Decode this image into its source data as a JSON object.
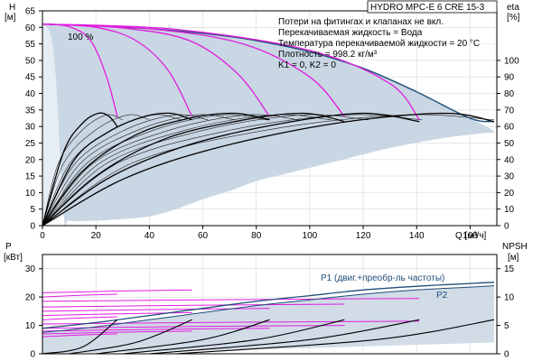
{
  "chart_data": {
    "type": "line",
    "title": "HYDRO MPC-E 6 CRE 15-3",
    "notes": [
      "Потери на фитингах и клапанах не вкл.",
      "Перекачиваемая жидкость = Вода",
      "Температура перекачиваемой жидкости = 20 °C",
      "Плотность = 998.2 кг/м³",
      "K1 = 0, K2 = 0"
    ],
    "percent_label": "100 %",
    "colors": {
      "envelope": "#c9d6e3",
      "envelope_light": "#e6edf4",
      "magenta": "#e21ce0",
      "black": "#000000",
      "navy": "#1f4e79",
      "thin": "#222222"
    },
    "x_axis": {
      "label": "Q [м³/ч]",
      "range": [
        0,
        170
      ],
      "ticks": [
        0,
        20,
        40,
        60,
        80,
        100,
        120,
        140,
        160
      ]
    },
    "top": {
      "y_left": {
        "label_line1": "H",
        "label_line2": "[м]",
        "range": [
          0,
          65
        ],
        "ticks": [
          0,
          5,
          10,
          15,
          20,
          25,
          30,
          35,
          40,
          45,
          50,
          55,
          60,
          65
        ]
      },
      "y_right": {
        "label_line1": "eta",
        "label_line2": "[%]",
        "range": [
          0,
          130
        ],
        "ticks": [
          0,
          10,
          20,
          30,
          40,
          50,
          60,
          70,
          80,
          90,
          100
        ]
      },
      "envelope": [
        [
          0,
          61
        ],
        [
          10,
          60.8
        ],
        [
          20,
          60.4
        ],
        [
          40,
          59.6
        ],
        [
          60,
          58.2
        ],
        [
          80,
          56
        ],
        [
          100,
          52.6
        ],
        [
          120,
          47.6
        ],
        [
          140,
          40.5
        ],
        [
          160,
          32.5
        ],
        [
          169,
          28.5
        ],
        [
          165,
          28
        ],
        [
          150,
          26.5
        ],
        [
          130,
          23.5
        ],
        [
          110,
          19.5
        ],
        [
          90,
          15.5
        ],
        [
          80,
          13.5
        ],
        [
          70,
          10.5
        ],
        [
          60,
          8
        ],
        [
          50,
          5
        ],
        [
          40,
          2.8
        ],
        [
          30,
          2
        ],
        [
          20,
          1.5
        ],
        [
          10,
          1.5
        ],
        [
          8,
          3
        ],
        [
          5,
          45
        ],
        [
          3,
          58
        ],
        [
          0,
          61
        ]
      ],
      "qh_max": [
        [
          0,
          61
        ],
        [
          20,
          60.4
        ],
        [
          40,
          59.6
        ],
        [
          60,
          58.2
        ],
        [
          80,
          56
        ],
        [
          100,
          52.6
        ],
        [
          120,
          47.6
        ],
        [
          140,
          40.5
        ],
        [
          160,
          32.5
        ],
        [
          169,
          31.5
        ]
      ],
      "qh_magenta": [
        [
          [
            0,
            61
          ],
          [
            10,
            60.2
          ],
          [
            18,
            56
          ],
          [
            24,
            45
          ],
          [
            28,
            33
          ]
        ],
        [
          [
            0,
            61
          ],
          [
            20,
            60
          ],
          [
            35,
            56
          ],
          [
            47,
            47
          ],
          [
            56,
            33
          ]
        ],
        [
          [
            0,
            61
          ],
          [
            30,
            59.8
          ],
          [
            55,
            56
          ],
          [
            73,
            46
          ],
          [
            85,
            33
          ]
        ],
        [
          [
            0,
            61
          ],
          [
            40,
            59.6
          ],
          [
            75,
            55
          ],
          [
            100,
            45
          ],
          [
            113,
            33
          ]
        ],
        [
          [
            0,
            61
          ],
          [
            50,
            59.4
          ],
          [
            100,
            53
          ],
          [
            130,
            43
          ],
          [
            141,
            32
          ]
        ]
      ],
      "eff_black": [
        [
          [
            0,
            0
          ],
          [
            8,
            45
          ],
          [
            15,
            62
          ],
          [
            21,
            68
          ],
          [
            25,
            66
          ],
          [
            28,
            60
          ]
        ],
        [
          [
            0,
            0
          ],
          [
            12,
            40
          ],
          [
            25,
            57
          ],
          [
            38,
            66
          ],
          [
            48,
            68
          ],
          [
            56,
            64
          ]
        ],
        [
          [
            0,
            0
          ],
          [
            15,
            33
          ],
          [
            35,
            55
          ],
          [
            55,
            65
          ],
          [
            72,
            68
          ],
          [
            85,
            64
          ]
        ],
        [
          [
            0,
            0
          ],
          [
            20,
            30
          ],
          [
            45,
            52
          ],
          [
            72,
            63
          ],
          [
            97,
            68
          ],
          [
            113,
            63
          ]
        ],
        [
          [
            0,
            0
          ],
          [
            25,
            29
          ],
          [
            55,
            49
          ],
          [
            90,
            62
          ],
          [
            120,
            68
          ],
          [
            141,
            63
          ]
        ],
        [
          [
            0,
            0
          ],
          [
            30,
            28
          ],
          [
            65,
            47
          ],
          [
            110,
            62
          ],
          [
            150,
            68
          ],
          [
            169,
            63
          ]
        ]
      ],
      "qh_thin_x_at_33": [
        30,
        40,
        52,
        62,
        72,
        84,
        96,
        108,
        122,
        142,
        169
      ]
    },
    "bottom": {
      "y_left": {
        "label_line1": "P",
        "label_line2": "[кВт]",
        "range": [
          0,
          35
        ],
        "ticks": [
          0,
          10,
          20,
          30
        ]
      },
      "y_right": {
        "label_line1": "NPSH",
        "label_line2": "[м]",
        "range": [
          0,
          17.5
        ],
        "ticks": [
          0,
          5,
          10,
          15
        ]
      },
      "p1_label": "P1 (двиг.+преобр-ль частоты)",
      "p2_label": "P2",
      "p1_envelope": [
        [
          0,
          9
        ],
        [
          20,
          11
        ],
        [
          40,
          13.5
        ],
        [
          60,
          16
        ],
        [
          80,
          18.5
        ],
        [
          100,
          20.5
        ],
        [
          120,
          22.5
        ],
        [
          140,
          23.8
        ],
        [
          160,
          24.8
        ],
        [
          169,
          25.2
        ]
      ],
      "p2_envelope": [
        [
          0,
          7.5
        ],
        [
          20,
          9.5
        ],
        [
          40,
          12
        ],
        [
          60,
          14.5
        ],
        [
          80,
          17
        ],
        [
          100,
          19
        ],
        [
          120,
          21
        ],
        [
          140,
          22.5
        ],
        [
          160,
          23.5
        ],
        [
          169,
          24
        ]
      ],
      "p_magenta_y": [
        6,
        7,
        8,
        9,
        10.5,
        12,
        13.5,
        15,
        16.5,
        18.5,
        20,
        21.5
      ],
      "p_magenta_x_end": [
        28,
        56,
        85,
        113,
        141
      ],
      "npsh_black": [
        [
          [
            0,
            0
          ],
          [
            15,
            1.2
          ],
          [
            28,
            6
          ]
        ],
        [
          [
            10,
            0
          ],
          [
            35,
            2
          ],
          [
            56,
            6
          ]
        ],
        [
          [
            20,
            0
          ],
          [
            60,
            2.5
          ],
          [
            85,
            6
          ]
        ],
        [
          [
            30,
            0
          ],
          [
            80,
            2.5
          ],
          [
            113,
            6
          ]
        ],
        [
          [
            40,
            0
          ],
          [
            100,
            2.5
          ],
          [
            141,
            6
          ]
        ],
        [
          [
            50,
            0
          ],
          [
            125,
            2.5
          ],
          [
            169,
            6
          ]
        ]
      ]
    }
  }
}
